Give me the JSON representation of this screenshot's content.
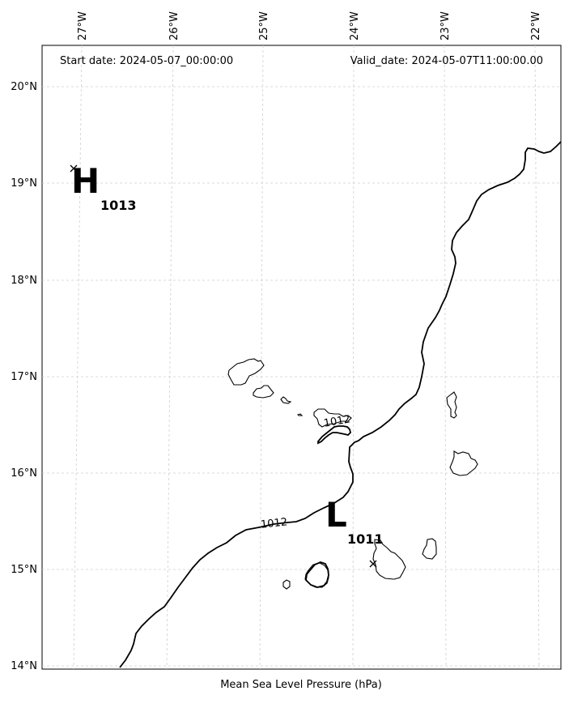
{
  "header": {
    "start_date": "Start date: 2024-05-07_00:00:00",
    "valid_date": "Valid_date: 2024-05-07T11:00:00.00"
  },
  "footer": {
    "caption": "Mean Sea Level Pressure (hPa)"
  },
  "axes": {
    "lon_labels": [
      "27°W",
      "26°W",
      "25°W",
      "24°W",
      "23°W",
      "22°W"
    ],
    "lat_labels": [
      "20°N",
      "19°N",
      "18°N",
      "17°N",
      "16°N",
      "15°N",
      "14°N"
    ]
  },
  "pressure_centers": [
    {
      "type": "H",
      "value": "1013"
    },
    {
      "type": "L",
      "value": "1011"
    }
  ],
  "contours": [
    {
      "level": "1012"
    },
    {
      "level": "1012"
    }
  ],
  "colors": {
    "contour": "#000000",
    "coastline": "#000000",
    "gridline": "#cfcfcf",
    "frame": "#000000"
  }
}
